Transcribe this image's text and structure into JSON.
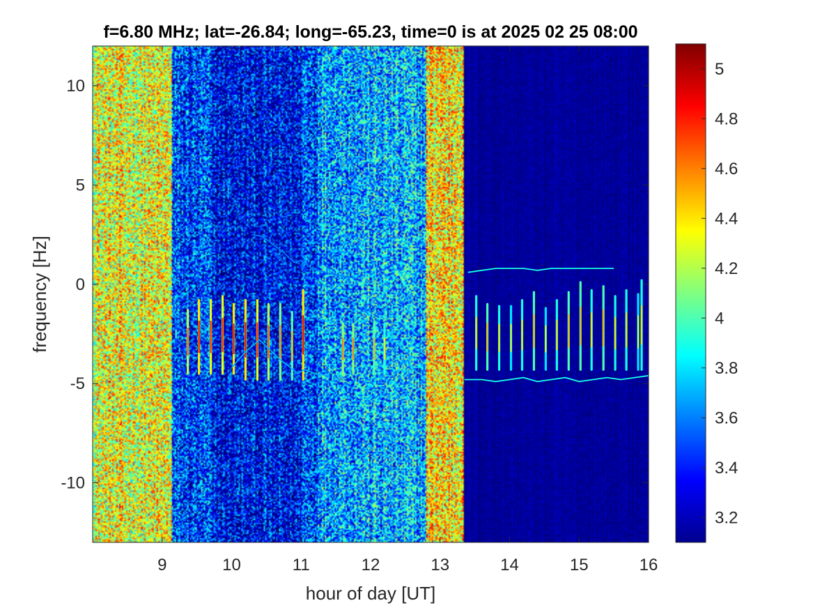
{
  "chart_data": {
    "type": "heatmap",
    "title": "f=6.80 MHz;  lat=-26.84; long=-65.23, time=0 is at 2025 02 25 08:00",
    "xlabel": "hour of day [UT]",
    "ylabel": "frequency [Hz]",
    "xlim": [
      8,
      16
    ],
    "ylim": [
      -13,
      12
    ],
    "xticks": [
      9,
      10,
      11,
      12,
      13,
      14,
      15,
      16
    ],
    "xtick_labels": [
      "9",
      "10",
      "11",
      "12",
      "13",
      "14",
      "15",
      "16"
    ],
    "yticks": [
      10,
      5,
      0,
      -5,
      -10
    ],
    "ytick_labels": [
      "10",
      "5",
      "0",
      "-5",
      "-10"
    ],
    "colorbar": {
      "colormap": "jet",
      "clim": [
        3.1,
        5.1
      ],
      "ticks": [
        5,
        4.8,
        4.6,
        4.4,
        4.2,
        4,
        3.8,
        3.6,
        3.4,
        3.2
      ],
      "tick_labels": [
        "5",
        "4.8",
        "4.6",
        "4.4",
        "4.2",
        "4",
        "3.8",
        "3.6",
        "3.4",
        "3.2"
      ]
    },
    "background_level_by_time": [
      {
        "x_start": 8.0,
        "x_end": 9.15,
        "level": 4.3
      },
      {
        "x_start": 9.15,
        "x_end": 9.7,
        "level": 3.45
      },
      {
        "x_start": 9.7,
        "x_end": 11.0,
        "level": 3.3
      },
      {
        "x_start": 11.0,
        "x_end": 11.25,
        "level": 3.5
      },
      {
        "x_start": 11.25,
        "x_end": 12.8,
        "level": 3.7
      },
      {
        "x_start": 12.8,
        "x_end": 13.35,
        "level": 4.4
      },
      {
        "x_start": 13.35,
        "x_end": 16.0,
        "level": 3.15
      }
    ],
    "spectral_lines": [
      {
        "x": 9.2,
        "y_min": -3.0,
        "y_max": -2.0,
        "peak": 4.0
      },
      {
        "x": 9.37,
        "y_min": -4.5,
        "y_max": -1.3,
        "peak": 4.7
      },
      {
        "x": 9.53,
        "y_min": -4.5,
        "y_max": -0.8,
        "peak": 4.9
      },
      {
        "x": 9.7,
        "y_min": -4.5,
        "y_max": -0.8,
        "peak": 4.8
      },
      {
        "x": 9.87,
        "y_min": -4.5,
        "y_max": -0.6,
        "peak": 4.8
      },
      {
        "x": 10.03,
        "y_min": -4.5,
        "y_max": -1.0,
        "peak": 4.9
      },
      {
        "x": 10.2,
        "y_min": -4.8,
        "y_max": -0.8,
        "peak": 4.9
      },
      {
        "x": 10.37,
        "y_min": -4.8,
        "y_max": -0.8,
        "peak": 4.8
      },
      {
        "x": 10.53,
        "y_min": -4.8,
        "y_max": -1.0,
        "peak": 4.7
      },
      {
        "x": 10.7,
        "y_min": -4.8,
        "y_max": -1.0,
        "peak": 4.6
      },
      {
        "x": 10.87,
        "y_min": -4.8,
        "y_max": -1.4,
        "peak": 4.5
      },
      {
        "x": 11.03,
        "y_min": -4.8,
        "y_max": -0.3,
        "peak": 4.9
      },
      {
        "x": 11.6,
        "y_min": -4.5,
        "y_max": -2.0,
        "peak": 4.6
      },
      {
        "x": 11.75,
        "y_min": -4.5,
        "y_max": -2.0,
        "peak": 4.6
      },
      {
        "x": 12.05,
        "y_min": -4.5,
        "y_max": -2.0,
        "peak": 4.5
      },
      {
        "x": 12.2,
        "y_min": -4.5,
        "y_max": -2.0,
        "peak": 4.4
      },
      {
        "x": 13.52,
        "y_min": -4.3,
        "y_max": -0.6,
        "peak": 4.4
      },
      {
        "x": 13.68,
        "y_min": -4.3,
        "y_max": -1.0,
        "peak": 4.5
      },
      {
        "x": 13.85,
        "y_min": -4.3,
        "y_max": -1.1,
        "peak": 4.4
      },
      {
        "x": 14.02,
        "y_min": -4.3,
        "y_max": -1.1,
        "peak": 4.3
      },
      {
        "x": 14.18,
        "y_min": -4.3,
        "y_max": -0.8,
        "peak": 4.4
      },
      {
        "x": 14.35,
        "y_min": -4.3,
        "y_max": -0.4,
        "peak": 4.5
      },
      {
        "x": 14.52,
        "y_min": -4.3,
        "y_max": -1.2,
        "peak": 4.3
      },
      {
        "x": 14.68,
        "y_min": -4.3,
        "y_max": -0.8,
        "peak": 4.4
      },
      {
        "x": 14.85,
        "y_min": -4.3,
        "y_max": -0.4,
        "peak": 4.5
      },
      {
        "x": 15.02,
        "y_min": -4.3,
        "y_max": 0.1,
        "peak": 4.5
      },
      {
        "x": 15.18,
        "y_min": -4.3,
        "y_max": -0.3,
        "peak": 4.4
      },
      {
        "x": 15.35,
        "y_min": -4.3,
        "y_max": -0.1,
        "peak": 4.5
      },
      {
        "x": 15.52,
        "y_min": -4.3,
        "y_max": -0.6,
        "peak": 4.4
      },
      {
        "x": 15.68,
        "y_min": -4.3,
        "y_max": -0.3,
        "peak": 4.4
      },
      {
        "x": 15.85,
        "y_min": -4.3,
        "y_max": -0.5,
        "peak": 4.3
      },
      {
        "x": 15.9,
        "y_min": -4.3,
        "y_max": 0.2,
        "peak": 4.4
      }
    ],
    "traces": [
      {
        "level": 3.9,
        "points": [
          [
            13.4,
            0.6
          ],
          [
            13.6,
            0.7
          ],
          [
            13.8,
            0.8
          ],
          [
            14.0,
            0.8
          ],
          [
            14.2,
            0.8
          ],
          [
            14.4,
            0.7
          ],
          [
            14.6,
            0.8
          ],
          [
            14.8,
            0.8
          ],
          [
            15.0,
            0.8
          ],
          [
            15.2,
            0.8
          ],
          [
            15.5,
            0.8
          ]
        ]
      },
      {
        "level": 3.9,
        "points": [
          [
            13.35,
            -4.8
          ],
          [
            13.6,
            -4.8
          ],
          [
            13.8,
            -4.9
          ],
          [
            14.0,
            -4.8
          ],
          [
            14.2,
            -4.7
          ],
          [
            14.4,
            -4.9
          ],
          [
            14.6,
            -4.8
          ],
          [
            14.8,
            -4.7
          ],
          [
            15.0,
            -4.9
          ],
          [
            15.2,
            -4.8
          ],
          [
            15.4,
            -4.7
          ],
          [
            15.6,
            -4.8
          ],
          [
            15.8,
            -4.7
          ],
          [
            16.0,
            -4.6
          ]
        ]
      },
      {
        "level": 3.7,
        "points": [
          [
            10.0,
            -4.2
          ],
          [
            10.2,
            -3.4
          ],
          [
            10.4,
            -2.8
          ],
          [
            10.55,
            -3.3
          ],
          [
            10.7,
            -3.8
          ],
          [
            10.85,
            -4.2
          ],
          [
            10.95,
            -4.5
          ],
          [
            11.05,
            -4.3
          ],
          [
            11.2,
            -4.5
          ],
          [
            11.4,
            -4.6
          ]
        ]
      },
      {
        "level": 3.6,
        "points": [
          [
            10.3,
            2.5
          ],
          [
            10.45,
            2.4
          ],
          [
            10.6,
            2.0
          ],
          [
            10.75,
            1.6
          ],
          [
            10.9,
            1.1
          ],
          [
            11.0,
            1.2
          ],
          [
            11.15,
            0.8
          ],
          [
            11.35,
            0.6
          ],
          [
            11.6,
            0.4
          ],
          [
            11.8,
            0.3
          ]
        ]
      }
    ]
  }
}
